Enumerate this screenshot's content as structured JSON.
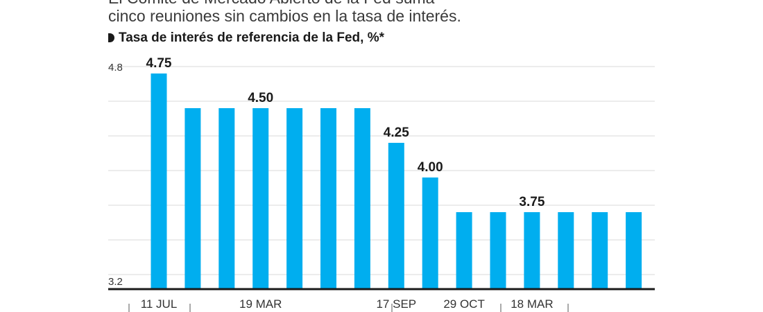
{
  "intro": {
    "line1": "El Comité de Mercado Abierto de la Fed suma",
    "line2": "cinco reuniones sin cambios en la tasa de interés."
  },
  "subtitle": "Tasa de interés de referencia de la Fed, %*",
  "colors": {
    "bar": "#00AEEF",
    "grid": "#d9d9d9",
    "axis": "#1a1a1a",
    "text": "#1a1a1a"
  },
  "chart_data": {
    "type": "bar",
    "title": "Tasa de interés de referencia de la Fed, %*",
    "ylim": [
      3.2,
      4.8
    ],
    "y_tick_labels": [
      "4.8",
      "3.2"
    ],
    "x_tick_labels": [
      "11 JUL",
      "19 MAR",
      "17 SEP",
      "29 OCT",
      "18 MAR"
    ],
    "values": [
      4.75,
      4.5,
      4.5,
      4.5,
      4.5,
      4.5,
      4.5,
      4.25,
      4.0,
      3.75,
      3.75,
      3.75,
      3.75,
      3.75,
      3.75
    ],
    "data_labels": [
      "4.75",
      "",
      "",
      "4.50",
      "",
      "",
      "",
      "4.25",
      "4.00",
      "",
      "",
      "3.75",
      "",
      "",
      ""
    ],
    "grid": true,
    "legend": "none"
  }
}
